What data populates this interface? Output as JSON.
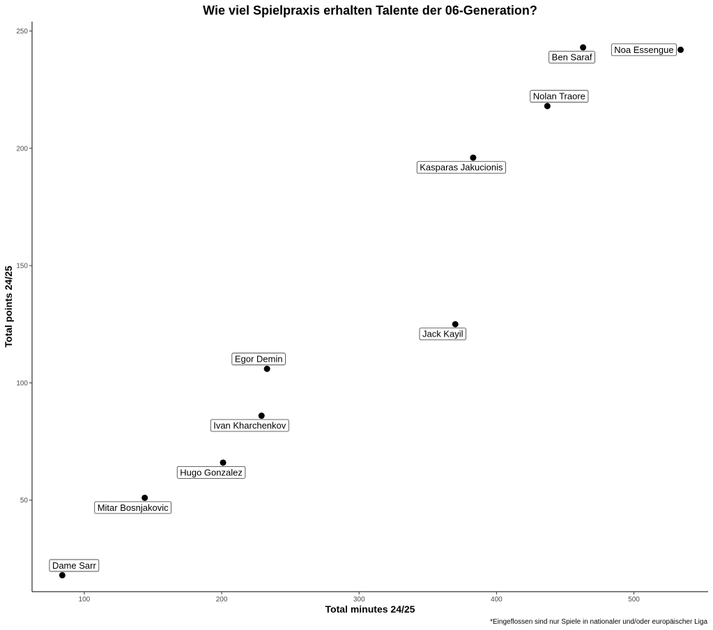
{
  "chart_data": {
    "type": "scatter",
    "title": "Wie viel Spielpraxis erhalten Talente der 06-Generation?",
    "xlabel": "Total minutes 24/25",
    "ylabel": "Total points 24/25",
    "caption": "*Eingeflossen sind nur Spiele in nationaler und/oder europäischer Liga",
    "xlim": [
      62,
      554
    ],
    "ylim": [
      11,
      254
    ],
    "x_ticks": [
      100,
      200,
      300,
      400,
      500
    ],
    "y_ticks": [
      50,
      100,
      150,
      200,
      250
    ],
    "grid": false,
    "point_color": "#000000",
    "points": [
      {
        "name": "Dame Sarr",
        "x": 84,
        "y": 18,
        "label_pos": "above"
      },
      {
        "name": "Mitar Bosnjakovic",
        "x": 144,
        "y": 51,
        "label_pos": "below"
      },
      {
        "name": "Hugo Gonzalez",
        "x": 201,
        "y": 66,
        "label_pos": "below"
      },
      {
        "name": "Ivan Kharchenkov",
        "x": 229,
        "y": 86,
        "label_pos": "below"
      },
      {
        "name": "Egor Demin",
        "x": 233,
        "y": 106,
        "label_pos": "above"
      },
      {
        "name": "Jack Kayil",
        "x": 370,
        "y": 125,
        "label_pos": "below"
      },
      {
        "name": "Kasparas Jakucionis",
        "x": 383,
        "y": 196,
        "label_pos": "below"
      },
      {
        "name": "Nolan Traore",
        "x": 437,
        "y": 218,
        "label_pos": "above"
      },
      {
        "name": "Ben Saraf",
        "x": 463,
        "y": 243,
        "label_pos": "below"
      },
      {
        "name": "Noa Essengue",
        "x": 534,
        "y": 242,
        "label_pos": "left"
      }
    ]
  }
}
